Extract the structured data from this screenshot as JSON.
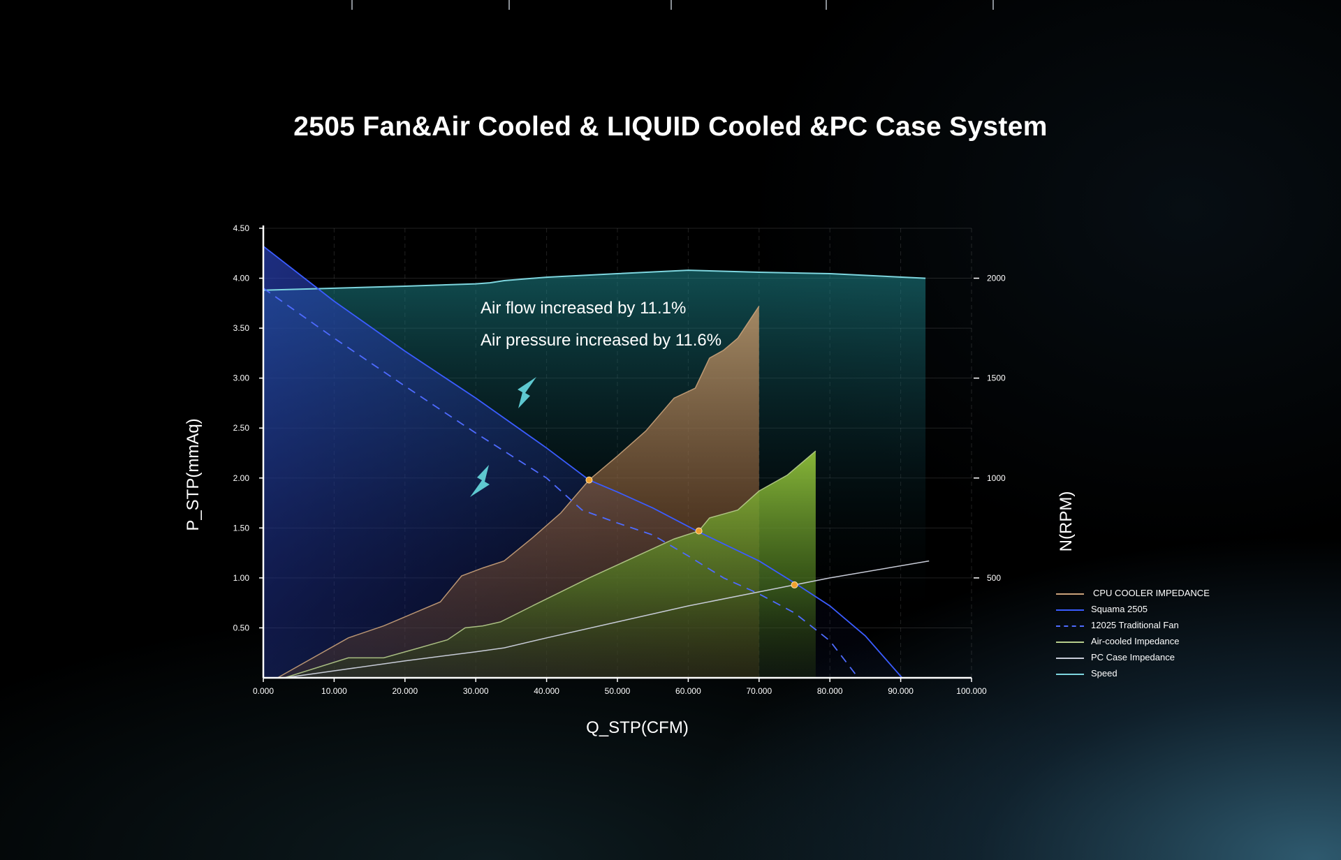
{
  "colors": {
    "background": "#000000",
    "cpu_cooler": "#caa27a",
    "squama": "#3a5cff",
    "traditional": "#4e6bff",
    "air_cooled": "#b7cd8c",
    "pc_case": "#c8ccd8",
    "speed": "#7ed6df",
    "intersection": "#f0a030",
    "arrow": "#5ec8d0"
  },
  "chart_data": {
    "type": "area",
    "title": "2505 Fan&Air Cooled & LIQUID Cooled &PC Case System",
    "xlabel": "Q_STP(CFM)",
    "ylabel": "P_STP(mmAq)",
    "y2label": "N(RPM)",
    "xlim": [
      0,
      100
    ],
    "ylim": [
      0,
      4.5
    ],
    "y2lim": [
      0,
      2250
    ],
    "x_ticks": [
      "0.000",
      "10.000",
      "20.000",
      "30.000",
      "40.000",
      "50.000",
      "60.000",
      "70.000",
      "80.000",
      "90.000",
      "100.000"
    ],
    "y_ticks": [
      "0.50",
      "1.00",
      "1.50",
      "2.00",
      "2.50",
      "3.00",
      "3.50",
      "4.00",
      "4.50"
    ],
    "y2_ticks": [
      "500",
      "1000",
      "1500",
      "2000"
    ],
    "grid": true,
    "legend_position": "right",
    "annotations": [
      "Air flow increased by 11.1%",
      "Air pressure increased by 11.6%"
    ],
    "series": [
      {
        "name": "CPU COOLER IMPEDANCE",
        "style": "filled-area",
        "x": [
          2,
          12,
          17,
          22,
          25,
          28,
          31,
          34,
          38,
          42,
          46,
          50,
          54,
          58,
          61,
          63,
          65,
          67,
          70
        ],
        "y": [
          0,
          0.4,
          0.52,
          0.67,
          0.76,
          1.02,
          1.1,
          1.17,
          1.4,
          1.65,
          1.98,
          2.22,
          2.47,
          2.8,
          2.9,
          3.2,
          3.28,
          3.4,
          3.72
        ]
      },
      {
        "name": "Squama 2505",
        "style": "solid",
        "x": [
          0,
          10,
          20,
          30,
          40,
          46,
          50,
          55,
          61.2,
          65,
          70,
          75,
          80,
          85,
          90.2
        ],
        "y": [
          4.32,
          3.77,
          3.27,
          2.8,
          2.3,
          1.98,
          1.86,
          1.7,
          1.47,
          1.34,
          1.17,
          0.95,
          0.72,
          0.42,
          0
        ]
      },
      {
        "name": "12025 Traditional Fan",
        "style": "dashed",
        "x": [
          0,
          10,
          20,
          30,
          40,
          45,
          50,
          55,
          60,
          65,
          70,
          75,
          80,
          84
        ],
        "y": [
          3.9,
          3.4,
          2.92,
          2.45,
          2.0,
          1.68,
          1.55,
          1.43,
          1.22,
          1.0,
          0.84,
          0.65,
          0.37,
          0
        ]
      },
      {
        "name": "Air-cooled Impedance",
        "style": "filled-area",
        "x": [
          3,
          12,
          17,
          22,
          26,
          28.5,
          31,
          33.5,
          38,
          42,
          46,
          50,
          54,
          58,
          61.5,
          63,
          65,
          67,
          70,
          74,
          78
        ],
        "y": [
          0,
          0.2,
          0.2,
          0.3,
          0.38,
          0.5,
          0.52,
          0.56,
          0.72,
          0.86,
          1.0,
          1.13,
          1.26,
          1.39,
          1.47,
          1.6,
          1.64,
          1.68,
          1.87,
          2.03,
          2.27
        ]
      },
      {
        "name": "PC Case Impedance",
        "style": "solid",
        "x": [
          3,
          10,
          20,
          30,
          34,
          40,
          50,
          60,
          70,
          75,
          80,
          94
        ],
        "y": [
          0,
          0.07,
          0.17,
          0.26,
          0.3,
          0.4,
          0.56,
          0.72,
          0.86,
          0.93,
          1.0,
          1.17
        ]
      },
      {
        "name": "Speed",
        "style": "filled-area",
        "axis": "y2",
        "x": [
          0,
          10,
          20,
          30,
          32,
          34,
          40,
          50,
          60,
          70,
          80,
          93.5
        ],
        "y": [
          1940,
          1950,
          1960,
          1972,
          1977,
          1988,
          2005,
          2023,
          2040,
          2030,
          2023,
          2000
        ]
      }
    ],
    "intersection_points": [
      {
        "x": 46,
        "y": 1.98
      },
      {
        "x": 61.5,
        "y": 1.47
      },
      {
        "x": 75,
        "y": 0.93
      }
    ]
  }
}
